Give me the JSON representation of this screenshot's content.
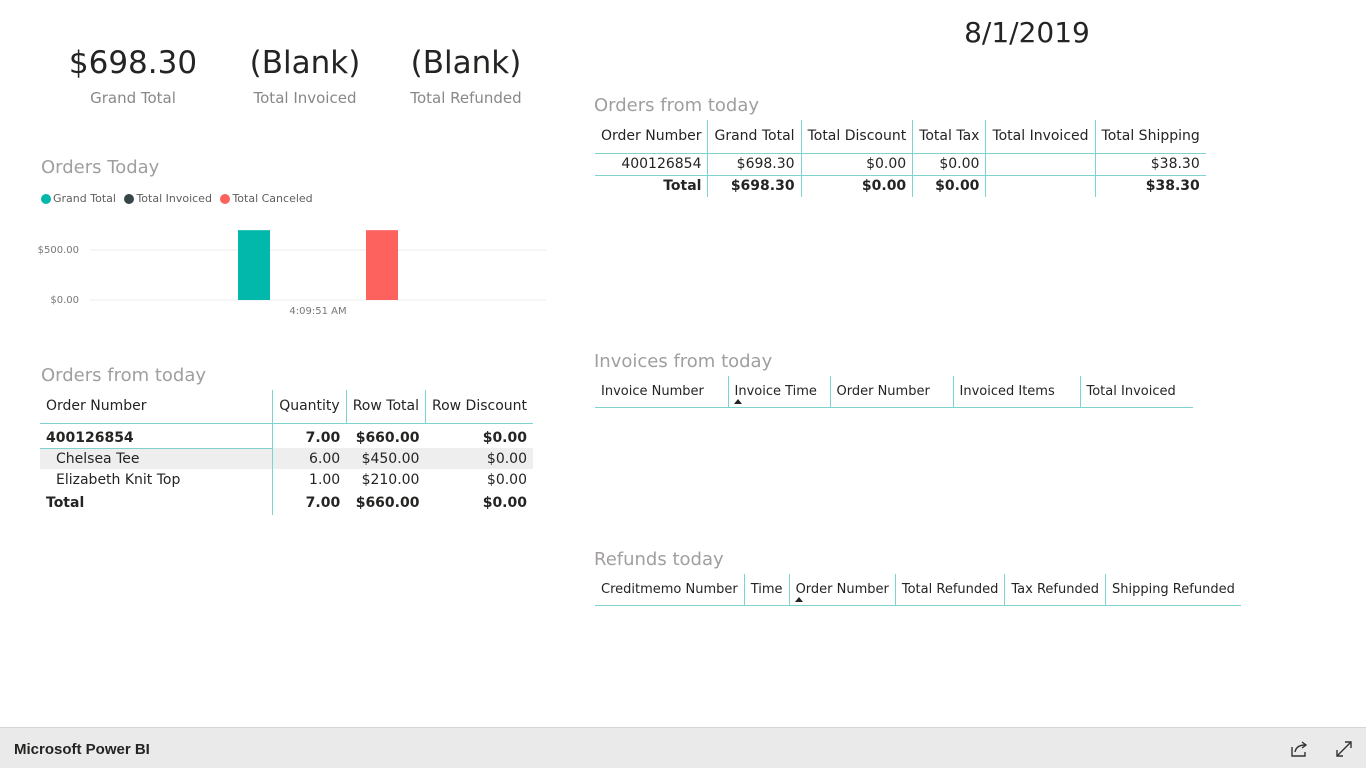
{
  "date": "8/1/2019",
  "cards": [
    {
      "value": "$698.30",
      "label": "Grand Total"
    },
    {
      "value": "(Blank)",
      "label": "Total Invoiced"
    },
    {
      "value": "(Blank)",
      "label": "Total Refunded"
    }
  ],
  "orders_today_chart": {
    "title": "Orders Today",
    "legend": [
      {
        "name": "Grand Total",
        "color": "#01b8aa"
      },
      {
        "name": "Total Invoiced",
        "color": "#374649"
      },
      {
        "name": "Total Canceled",
        "color": "#fd625e"
      }
    ],
    "y_ticks": [
      "$500.00",
      "$0.00"
    ],
    "x_ticks": [
      "4:09:51 AM"
    ]
  },
  "chart_data": {
    "type": "bar",
    "title": "Orders Today",
    "categories": [
      "4:09:51 AM"
    ],
    "series": [
      {
        "name": "Grand Total",
        "values": [
          698.3
        ],
        "color": "#01b8aa"
      },
      {
        "name": "Total Invoiced",
        "values": [
          0
        ],
        "color": "#374649"
      },
      {
        "name": "Total Canceled",
        "values": [
          698.3
        ],
        "color": "#fd625e"
      }
    ],
    "ylim": [
      0,
      700
    ],
    "y_ticks": [
      0,
      500
    ],
    "legend": "top-left",
    "grid": true
  },
  "orders_left": {
    "title": "Orders from today",
    "columns": [
      "Order Number",
      "Quantity",
      "Row Total",
      "Row Discount"
    ],
    "group": {
      "order": "400126854",
      "quantity": "7.00",
      "row_total": "$660.00",
      "row_discount": "$0.00"
    },
    "items": [
      {
        "name": "Chelsea Tee",
        "quantity": "6.00",
        "row_total": "$450.00",
        "row_discount": "$0.00"
      },
      {
        "name": "Elizabeth Knit Top",
        "quantity": "1.00",
        "row_total": "$210.00",
        "row_discount": "$0.00"
      }
    ],
    "total": {
      "label": "Total",
      "quantity": "7.00",
      "row_total": "$660.00",
      "row_discount": "$0.00"
    }
  },
  "orders_right": {
    "title": "Orders from today",
    "columns": [
      "Order Number",
      "Grand Total",
      "Total Discount",
      "Total Tax",
      "Total Invoiced",
      "Total Shipping"
    ],
    "row": {
      "order": "400126854",
      "grand_total": "$698.30",
      "discount": "$0.00",
      "tax": "$0.00",
      "invoiced": "",
      "shipping": "$38.30"
    },
    "total": {
      "label": "Total",
      "grand_total": "$698.30",
      "discount": "$0.00",
      "tax": "$0.00",
      "invoiced": "",
      "shipping": "$38.30"
    }
  },
  "invoices": {
    "title": "Invoices from today",
    "columns": [
      "Invoice Number",
      "Invoice Time",
      "Order Number",
      "Invoiced Items",
      "Total Invoiced"
    ]
  },
  "refunds": {
    "title": "Refunds today",
    "columns": [
      "Creditmemo Number",
      "Time",
      "Order Number",
      "Total Refunded",
      "Tax Refunded",
      "Shipping Refunded"
    ]
  },
  "footer": {
    "brand": "Microsoft Power BI",
    "share_icon": "share-icon",
    "fullscreen_icon": "expand-icon"
  }
}
